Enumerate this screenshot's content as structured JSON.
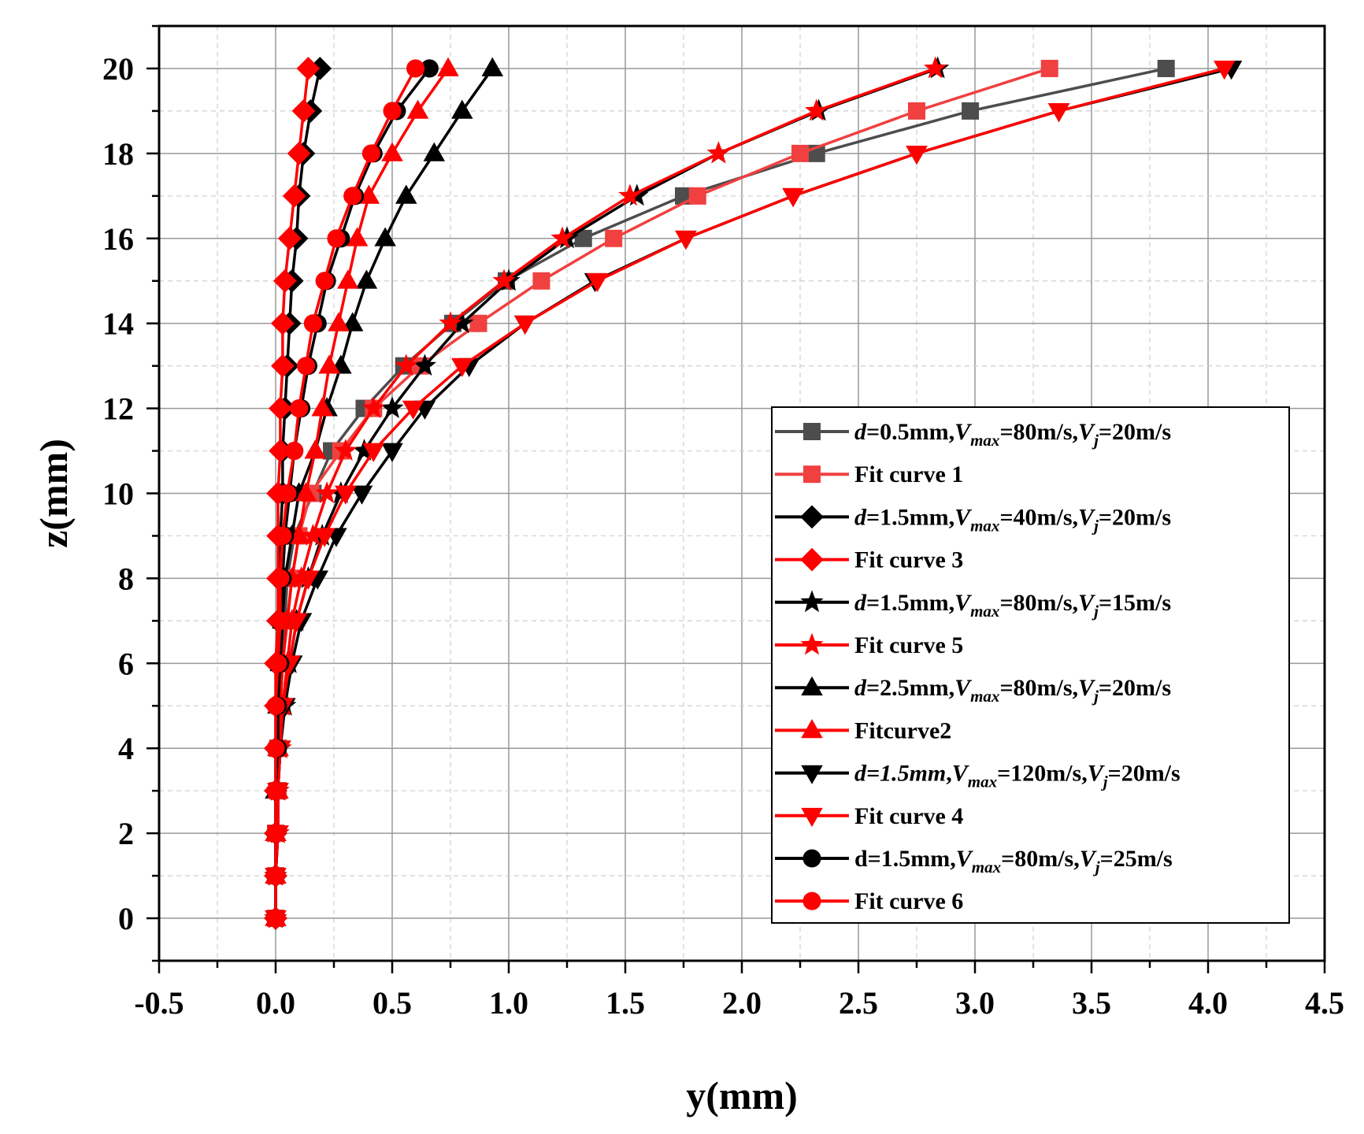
{
  "chart_data": {
    "type": "line",
    "xlabel": "y(mm)",
    "ylabel": "z(mm)",
    "xlim": [
      -0.5,
      4.5
    ],
    "ylim": [
      -1,
      21
    ],
    "xticks": [
      -0.5,
      0.0,
      0.5,
      1.0,
      1.5,
      2.0,
      2.5,
      3.0,
      3.5,
      4.0,
      4.5
    ],
    "xtick_labels": [
      "-0.5",
      "0.0",
      "0.5",
      "1.0",
      "1.5",
      "2.0",
      "2.5",
      "3.0",
      "3.5",
      "4.0",
      "4.5"
    ],
    "yticks": [
      0,
      2,
      4,
      6,
      8,
      10,
      12,
      14,
      16,
      18,
      20
    ],
    "ytick_labels": [
      "0",
      "2",
      "4",
      "6",
      "8",
      "10",
      "12",
      "14",
      "16",
      "18",
      "20"
    ],
    "grid": true,
    "legend_position": "bottom-right",
    "colors": {
      "black": "#000000",
      "gray": "#4d4d4d",
      "red": "#ff0000",
      "lightred": "#f04040"
    },
    "z": [
      0,
      1,
      2,
      3,
      4,
      5,
      6,
      7,
      8,
      9,
      10,
      11,
      12,
      13,
      14,
      15,
      16,
      17,
      18,
      19,
      20
    ],
    "series": [
      {
        "id": "s1",
        "legend": [
          {
            "t": "d",
            "i": true
          },
          {
            "t": "=0.5mm,"
          },
          {
            "t": "V",
            "i": true
          },
          {
            "t": "max",
            "i": true,
            "sub": true
          },
          {
            "t": "=80m/s,"
          },
          {
            "t": "V",
            "i": true
          },
          {
            "t": "j",
            "i": true,
            "sub": true
          },
          {
            "t": "=20m/s"
          }
        ],
        "marker": "square",
        "color": "#4d4d4d",
        "values": [
          0.0,
          0.0,
          0.0,
          0.01,
          0.01,
          0.02,
          0.03,
          0.04,
          0.05,
          0.08,
          0.16,
          0.24,
          0.38,
          0.55,
          0.76,
          0.99,
          1.32,
          1.75,
          2.32,
          2.98,
          3.82
        ]
      },
      {
        "id": "f1",
        "legend": [
          {
            "t": "Fit curve 1"
          }
        ],
        "marker": "square",
        "color": "#f04040",
        "values": [
          0.0,
          0.0,
          0.0,
          0.01,
          0.01,
          0.02,
          0.03,
          0.05,
          0.07,
          0.1,
          0.15,
          0.28,
          0.42,
          0.62,
          0.87,
          1.14,
          1.45,
          1.81,
          2.25,
          2.75,
          3.32
        ]
      },
      {
        "id": "s3",
        "legend": [
          {
            "t": "d",
            "i": true
          },
          {
            "t": "=1.5mm,"
          },
          {
            "t": "V",
            "i": true
          },
          {
            "t": "max",
            "i": true,
            "sub": true
          },
          {
            "t": "=40m/s,"
          },
          {
            "t": "V",
            "i": true
          },
          {
            "t": "j",
            "i": true,
            "sub": true
          },
          {
            "t": "=20m/s"
          }
        ],
        "marker": "diamond",
        "color": "#000000",
        "values": [
          0.0,
          0.0,
          0.0,
          0.0,
          0.0,
          0.01,
          0.01,
          0.01,
          0.02,
          0.02,
          0.03,
          0.03,
          0.04,
          0.05,
          0.06,
          0.07,
          0.09,
          0.1,
          0.12,
          0.15,
          0.19
        ]
      },
      {
        "id": "f3",
        "legend": [
          {
            "t": "Fit curve 3"
          }
        ],
        "marker": "diamond",
        "color": "#ff0000",
        "values": [
          0.0,
          0.0,
          0.0,
          0.0,
          0.0,
          0.0,
          0.0,
          0.01,
          0.01,
          0.01,
          0.01,
          0.02,
          0.02,
          0.03,
          0.03,
          0.04,
          0.06,
          0.08,
          0.1,
          0.12,
          0.14
        ]
      },
      {
        "id": "s5",
        "legend": [
          {
            "t": "d",
            "i": true
          },
          {
            "t": "=1.5mm,"
          },
          {
            "t": "V",
            "i": true
          },
          {
            "t": "max",
            "i": true,
            "sub": true
          },
          {
            "t": "=80m/s,"
          },
          {
            "t": "V",
            "i": true
          },
          {
            "t": "j",
            "i": true,
            "sub": true
          },
          {
            "t": "=15m/s"
          }
        ],
        "marker": "star",
        "color": "#000000",
        "values": [
          0.0,
          0.0,
          0.01,
          0.01,
          0.02,
          0.04,
          0.06,
          0.09,
          0.14,
          0.2,
          0.28,
          0.38,
          0.5,
          0.64,
          0.8,
          1.0,
          1.25,
          1.55,
          1.9,
          2.33,
          2.84
        ]
      },
      {
        "id": "f5",
        "legend": [
          {
            "t": "Fit curve 5"
          }
        ],
        "marker": "star",
        "color": "#ff0000",
        "values": [
          0.0,
          0.0,
          0.01,
          0.01,
          0.02,
          0.03,
          0.05,
          0.07,
          0.11,
          0.16,
          0.22,
          0.3,
          0.42,
          0.56,
          0.75,
          0.98,
          1.23,
          1.52,
          1.9,
          2.32,
          2.83
        ]
      },
      {
        "id": "s2",
        "legend": [
          {
            "t": "d",
            "i": true
          },
          {
            "t": "=2.5mm,"
          },
          {
            "t": "V",
            "i": true
          },
          {
            "t": "max",
            "i": true,
            "sub": true
          },
          {
            "t": "=80m/s,"
          },
          {
            "t": "V",
            "i": true
          },
          {
            "t": "j",
            "i": true,
            "sub": true
          },
          {
            "t": "=20m/s"
          }
        ],
        "marker": "triangle-up",
        "color": "#000000",
        "values": [
          0.0,
          0.0,
          0.0,
          0.0,
          0.01,
          0.01,
          0.02,
          0.03,
          0.04,
          0.07,
          0.1,
          0.17,
          0.22,
          0.28,
          0.33,
          0.39,
          0.47,
          0.56,
          0.68,
          0.8,
          0.93
        ]
      },
      {
        "id": "f2",
        "legend": [
          {
            "t": "Fitcurve2"
          }
        ],
        "marker": "triangle-up",
        "color": "#ff0000",
        "values": [
          0.0,
          0.0,
          0.0,
          0.01,
          0.01,
          0.02,
          0.03,
          0.05,
          0.07,
          0.1,
          0.13,
          0.17,
          0.2,
          0.23,
          0.27,
          0.31,
          0.35,
          0.4,
          0.5,
          0.61,
          0.74
        ]
      },
      {
        "id": "s4",
        "legend": [
          {
            "t": "d=1.5mm",
            "i": true
          },
          {
            "t": ","
          },
          {
            "t": "V",
            "i": true
          },
          {
            "t": "max",
            "i": true,
            "sub": true
          },
          {
            "t": "=120m/s,"
          },
          {
            "t": "V",
            "i": true
          },
          {
            "t": "j",
            "i": true,
            "sub": true
          },
          {
            "t": "=20m/s"
          }
        ],
        "marker": "triangle-down",
        "color": "#000000",
        "values": [
          0.0,
          0.0,
          0.01,
          0.01,
          0.02,
          0.04,
          0.07,
          0.11,
          0.18,
          0.26,
          0.37,
          0.5,
          0.64,
          0.83,
          1.07,
          1.37,
          1.76,
          2.22,
          2.75,
          3.36,
          4.1
        ]
      },
      {
        "id": "f4",
        "legend": [
          {
            "t": "Fit curve 4"
          }
        ],
        "marker": "triangle-down",
        "color": "#ff0000",
        "values": [
          0.0,
          0.0,
          0.01,
          0.01,
          0.02,
          0.03,
          0.06,
          0.09,
          0.14,
          0.21,
          0.3,
          0.42,
          0.59,
          0.8,
          1.07,
          1.38,
          1.76,
          2.22,
          2.75,
          3.36,
          4.07
        ]
      },
      {
        "id": "s6",
        "legend": [
          {
            "t": "d=1.5mm,"
          },
          {
            "t": "V",
            "i": true
          },
          {
            "t": "max",
            "i": true,
            "sub": true
          },
          {
            "t": "=80m/s,"
          },
          {
            "t": "V",
            "i": true
          },
          {
            "t": "j",
            "i": true,
            "sub": true
          },
          {
            "t": "=25m/s"
          }
        ],
        "marker": "circle",
        "color": "#000000",
        "values": [
          0.0,
          0.0,
          0.0,
          0.0,
          0.01,
          0.01,
          0.02,
          0.02,
          0.03,
          0.04,
          0.06,
          0.08,
          0.11,
          0.14,
          0.18,
          0.22,
          0.28,
          0.34,
          0.42,
          0.52,
          0.66
        ]
      },
      {
        "id": "f6",
        "legend": [
          {
            "t": "Fit curve 6"
          }
        ],
        "marker": "circle",
        "color": "#ff0000",
        "values": [
          0.0,
          0.0,
          0.0,
          0.0,
          0.0,
          0.0,
          0.01,
          0.02,
          0.02,
          0.03,
          0.05,
          0.08,
          0.1,
          0.13,
          0.16,
          0.21,
          0.26,
          0.33,
          0.41,
          0.5,
          0.6
        ]
      }
    ]
  }
}
